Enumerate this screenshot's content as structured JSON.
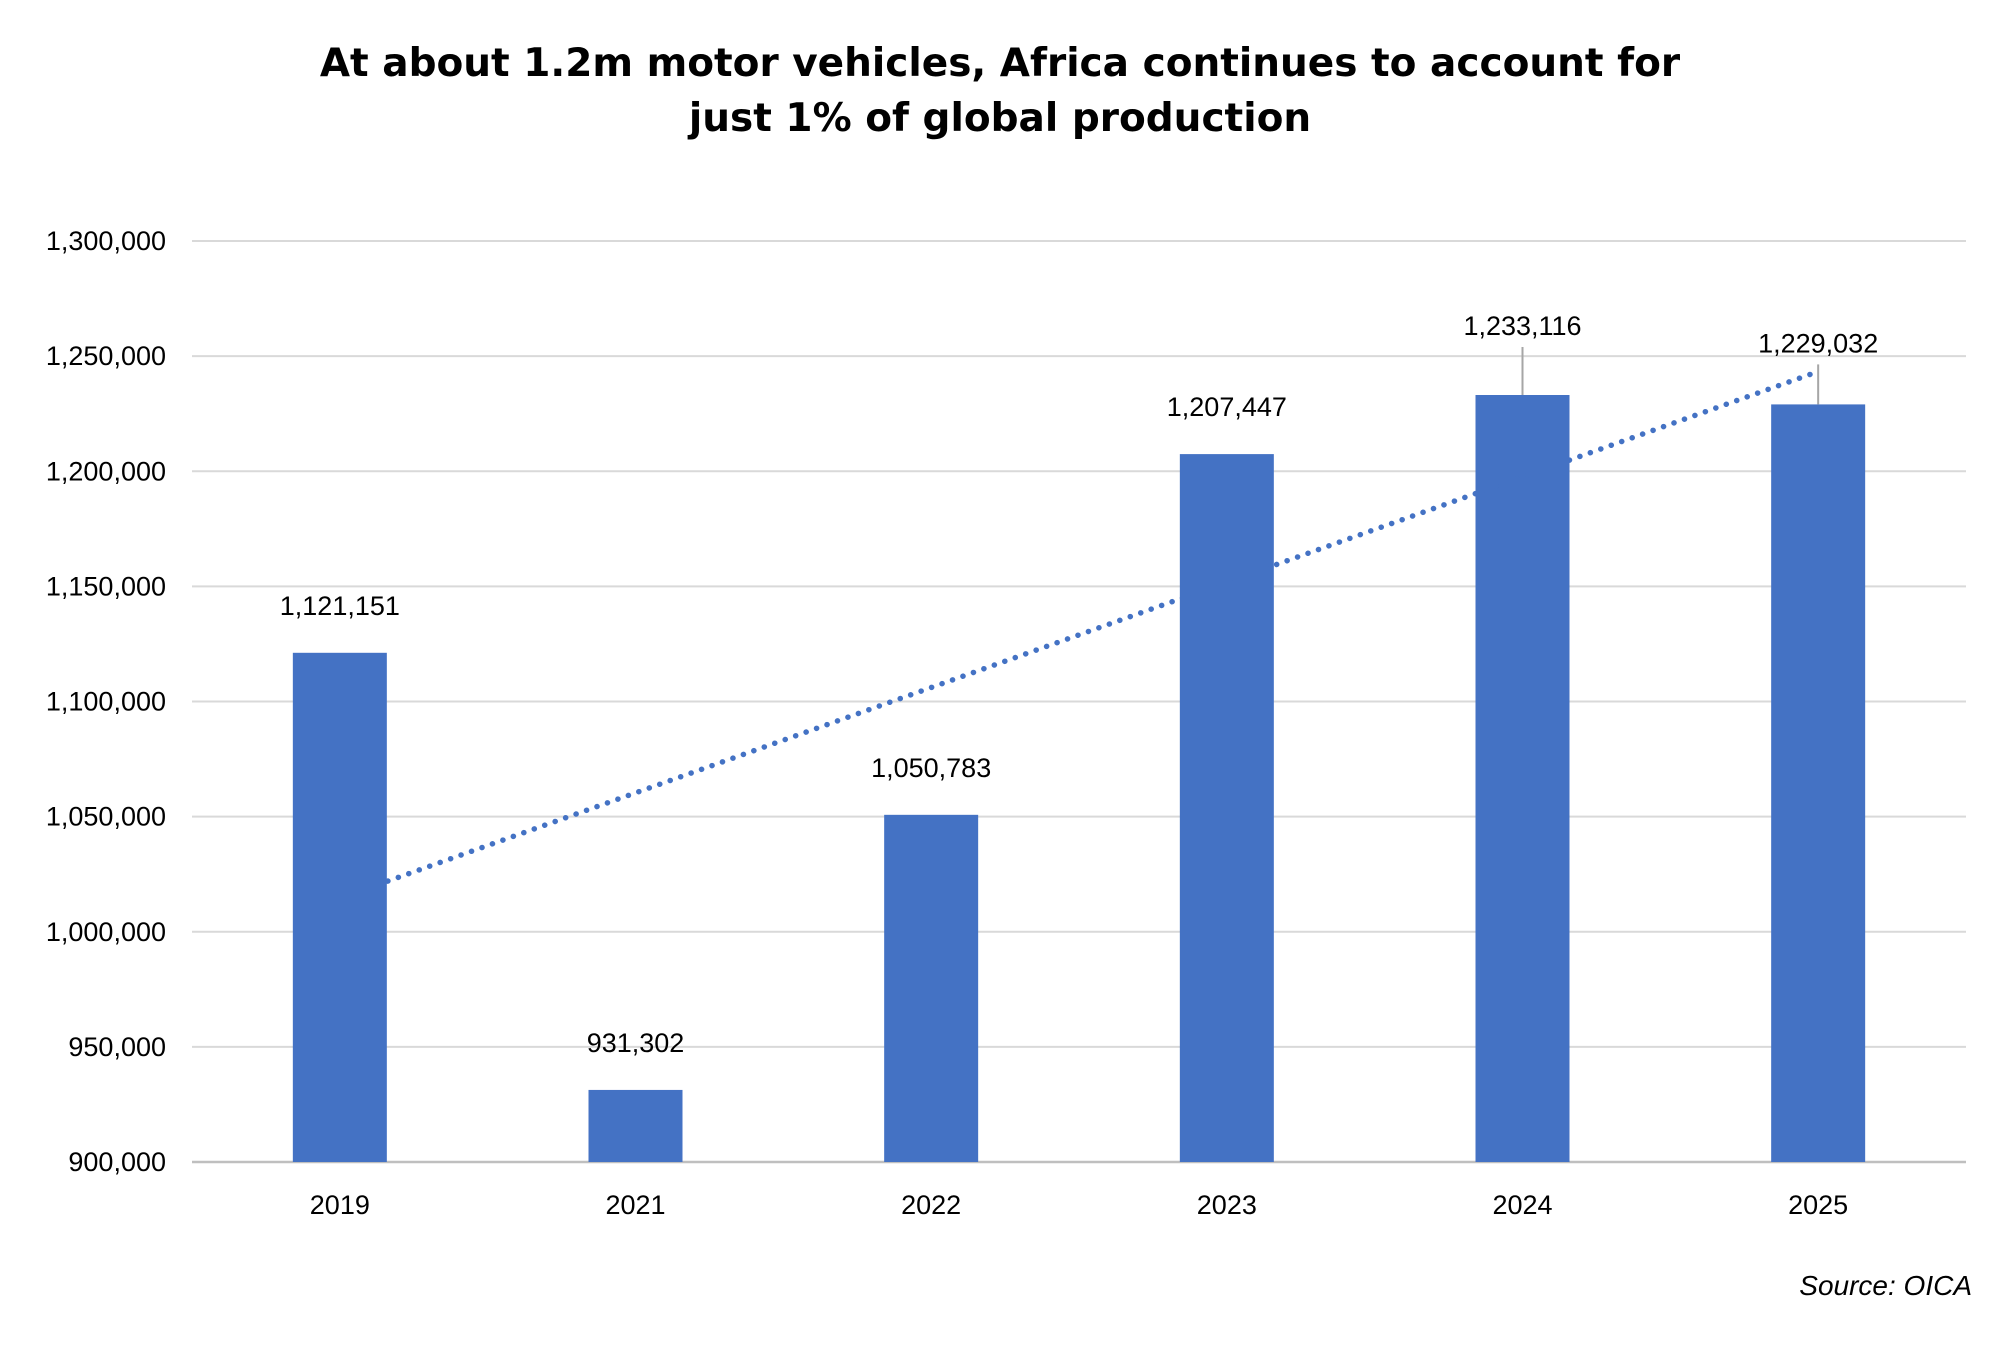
{
  "chart_data": {
    "type": "bar",
    "title": [
      "At about 1.2m motor  vehicles, Africa continues to account for",
      "just 1% of global production"
    ],
    "categories": [
      "2019",
      "2021",
      "2022",
      "2023",
      "2024",
      "2025"
    ],
    "values": [
      1121151,
      931302,
      1050783,
      1207447,
      1233116,
      1229032
    ],
    "value_labels": [
      "1,121,151",
      "931,302",
      "1,050,783",
      "1,207,447",
      "1,233,116",
      "1,229,032"
    ],
    "ylim": [
      900000,
      1300000
    ],
    "yticks": [
      900000,
      950000,
      1000000,
      1050000,
      1100000,
      1150000,
      1200000,
      1250000,
      1300000
    ],
    "ytick_labels": [
      "900,000",
      "950,000",
      "1,000,000",
      "1,050,000",
      "1,100,000",
      "1,150,000",
      "1,200,000",
      "1,250,000",
      "1,300,000"
    ],
    "trendline": {
      "type": "linear",
      "style": "dotted",
      "start_value": 1022000,
      "end_value": 1243000
    },
    "grid": true,
    "legend": "none",
    "source": "Source: OICA",
    "colors": {
      "bar": "#4472C4",
      "trend": "#4472C4",
      "grid": "#D9D9D9",
      "leader": "#A6A6A6"
    }
  }
}
